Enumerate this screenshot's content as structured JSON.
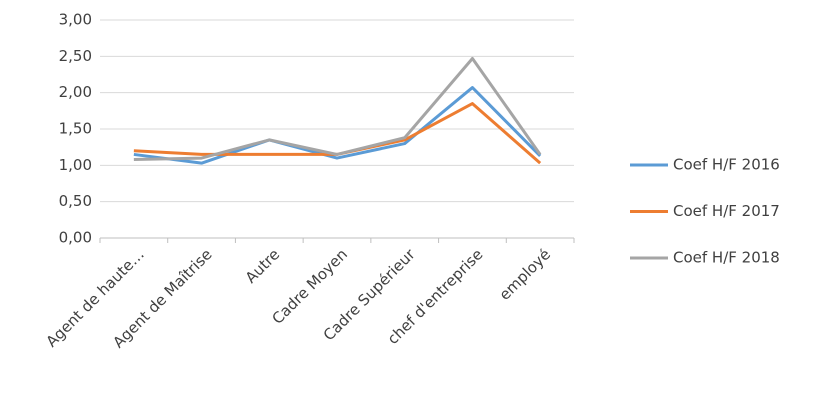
{
  "chart_data": {
    "type": "line",
    "categories": [
      "Agent de haute…",
      "Agent de Maîtrise",
      "Autre",
      "Cadre Moyen",
      "Cadre Supérieur",
      "chef d'entreprise",
      "employé"
    ],
    "series": [
      {
        "name": "Coef H/F 2016",
        "color": "#5b9bd5",
        "values": [
          1.15,
          1.03,
          1.35,
          1.1,
          1.3,
          2.07,
          1.13
        ]
      },
      {
        "name": "Coef H/F 2017",
        "color": "#ed7d31",
        "values": [
          1.2,
          1.15,
          1.15,
          1.15,
          1.35,
          1.85,
          1.03
        ]
      },
      {
        "name": "Coef H/F 2018",
        "color": "#a5a5a5",
        "values": [
          1.08,
          1.1,
          1.35,
          1.15,
          1.38,
          2.47,
          1.15
        ]
      }
    ],
    "ylim": [
      0,
      3
    ],
    "yticks": [
      {
        "value": 0,
        "label": "0,00"
      },
      {
        "value": 0.5,
        "label": "0,50"
      },
      {
        "value": 1,
        "label": "1,00"
      },
      {
        "value": 1.5,
        "label": "1,50"
      },
      {
        "value": 2,
        "label": "2,00"
      },
      {
        "value": 2.5,
        "label": "2,50"
      },
      {
        "value": 3,
        "label": "3,00"
      }
    ],
    "grid": true,
    "legend": "right"
  }
}
